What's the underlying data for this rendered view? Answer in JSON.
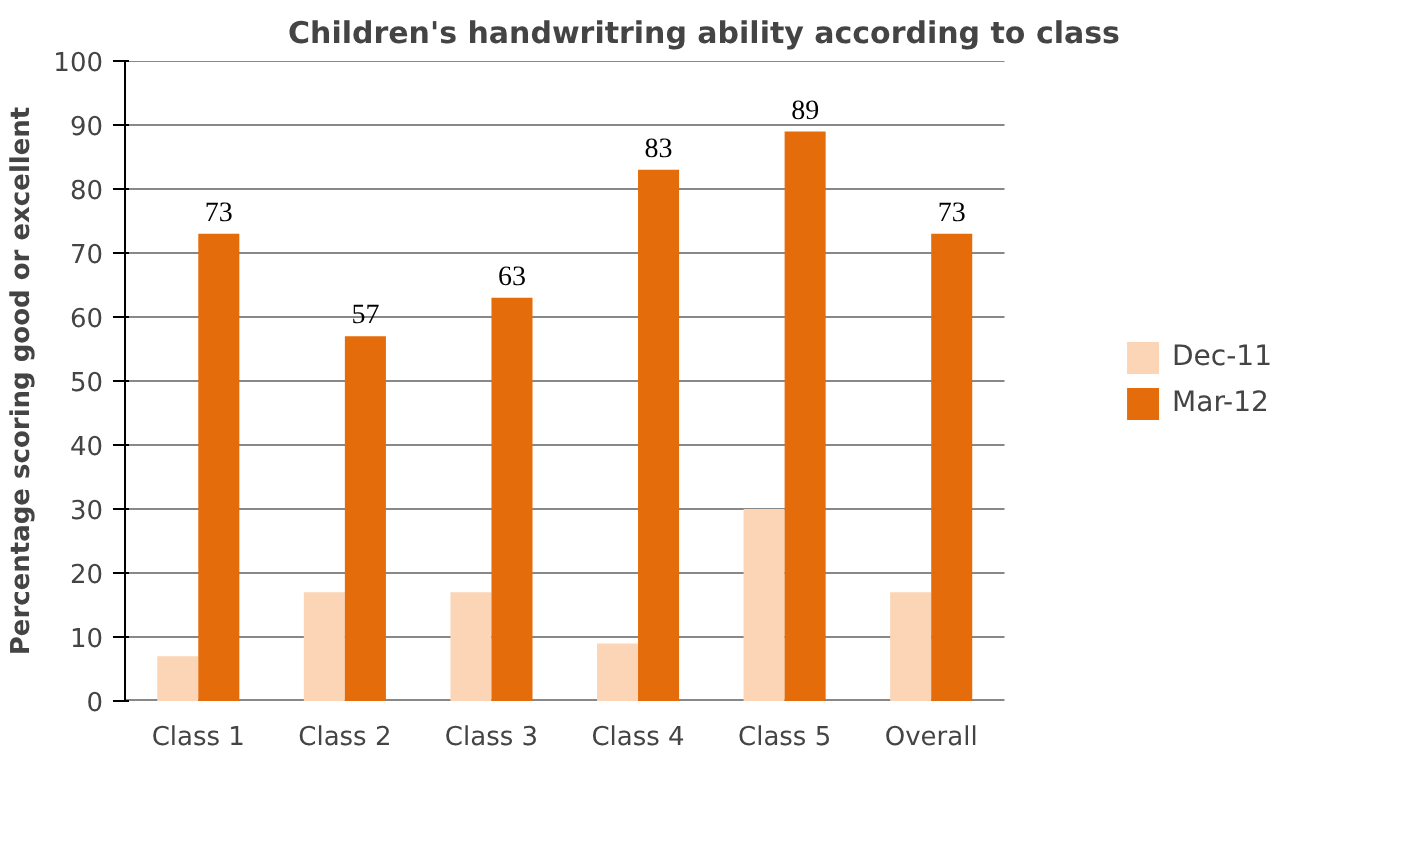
{
  "chart_data": {
    "type": "bar",
    "title": "Children's handwritring ability according to class",
    "ylabel": "Percentage scoring good or excellent",
    "categories": [
      "Class 1",
      "Class 2",
      "Class 3",
      "Class 4",
      "Class 5",
      "Overall"
    ],
    "series": [
      {
        "name": "Dec-11",
        "color": "#fbd5b5",
        "values": [
          7,
          17,
          17,
          9,
          30,
          17
        ]
      },
      {
        "name": "Mar-12",
        "color": "#e46c0a",
        "values": [
          73,
          57,
          63,
          83,
          89,
          73
        ],
        "value_labels": [
          "73",
          "57",
          "63",
          "83",
          "89",
          "73"
        ]
      }
    ],
    "ylim": [
      0,
      100
    ],
    "yticks": [
      0,
      10,
      20,
      30,
      40,
      50,
      60,
      70,
      80,
      90,
      100
    ],
    "grid": "y",
    "legend": "right"
  }
}
